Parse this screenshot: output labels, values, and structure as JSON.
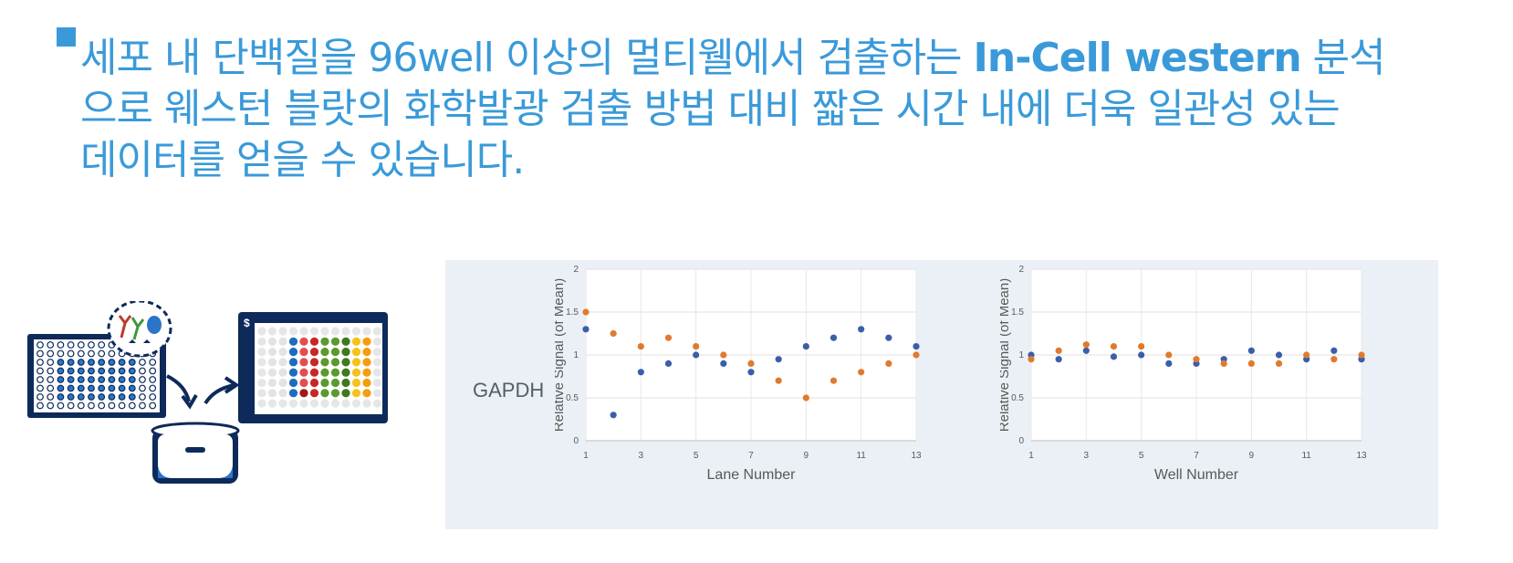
{
  "headline": {
    "line1_text": "세포 내 단백질을 96well 이상의 멀티웰에서 검출하는 ",
    "line1_bold": "In-Cell western",
    "line1_tail": " 분석",
    "line2": "으로 웨스턴 블랏의 화학발광 검출 방법 대비 짧은 시간 내에 더욱 일관성 있는",
    "line3": "데이터를 얻을 수 있습니다."
  },
  "panel_label": "GAPDH",
  "colors": {
    "accent": "#3a9ad9",
    "series_blue": "#3a5fa8",
    "series_orange": "#e07a2e",
    "panel_bg": "#ebf0f6",
    "navy": "#0d2a5a"
  },
  "illustration": {
    "icons": [
      "multiwell-plate-icon",
      "antibody-icon",
      "imager-scanner-icon",
      "scan-result-plate-icon",
      "arrow-down-icon",
      "arrow-up-icon"
    ]
  },
  "chart_data": [
    {
      "type": "scatter",
      "xlabel": "Lane Number",
      "ylabel": "Relative Signal (of Mean)",
      "xlim": [
        1,
        13
      ],
      "ylim": [
        0,
        2
      ],
      "xticks": [
        "1",
        "3",
        "5",
        "7",
        "9",
        "11",
        "13"
      ],
      "yticks": [
        "0",
        "0.5",
        "1",
        "1.5",
        "2"
      ],
      "grid": true,
      "series": [
        {
          "color": "#3a5fa8",
          "x": [
            1,
            2,
            3,
            4,
            5,
            6,
            7,
            8,
            9,
            10,
            11,
            12,
            13
          ],
          "values": [
            1.3,
            0.3,
            0.8,
            0.9,
            1.0,
            0.9,
            0.8,
            0.95,
            1.1,
            1.2,
            1.3,
            1.2,
            1.1
          ]
        },
        {
          "color": "#e07a2e",
          "x": [
            1,
            2,
            3,
            4,
            5,
            6,
            7,
            8,
            9,
            10,
            11,
            12,
            13
          ],
          "values": [
            1.5,
            1.25,
            1.1,
            1.2,
            1.1,
            1.0,
            0.9,
            0.7,
            0.5,
            0.7,
            0.8,
            0.9,
            1.0
          ]
        }
      ]
    },
    {
      "type": "scatter",
      "xlabel": "Well Number",
      "ylabel": "Relative Signal (of Mean)",
      "xlim": [
        1,
        13
      ],
      "ylim": [
        0,
        2
      ],
      "xticks": [
        "1",
        "3",
        "5",
        "7",
        "9",
        "11",
        "13"
      ],
      "yticks": [
        "0",
        "0.5",
        "1",
        "1.5",
        "2"
      ],
      "grid": true,
      "series": [
        {
          "color": "#3a5fa8",
          "x": [
            1,
            2,
            3,
            4,
            5,
            6,
            7,
            8,
            9,
            10,
            11,
            12,
            13
          ],
          "values": [
            1.0,
            0.95,
            1.05,
            0.98,
            1.0,
            0.9,
            0.9,
            0.95,
            1.05,
            1.0,
            0.95,
            1.05,
            0.95
          ]
        },
        {
          "color": "#e07a2e",
          "x": [
            1,
            2,
            3,
            4,
            5,
            6,
            7,
            8,
            9,
            10,
            11,
            12,
            13
          ],
          "values": [
            0.95,
            1.05,
            1.12,
            1.1,
            1.1,
            1.0,
            0.95,
            0.9,
            0.9,
            0.9,
            1.0,
            0.95,
            1.0
          ]
        }
      ]
    }
  ]
}
